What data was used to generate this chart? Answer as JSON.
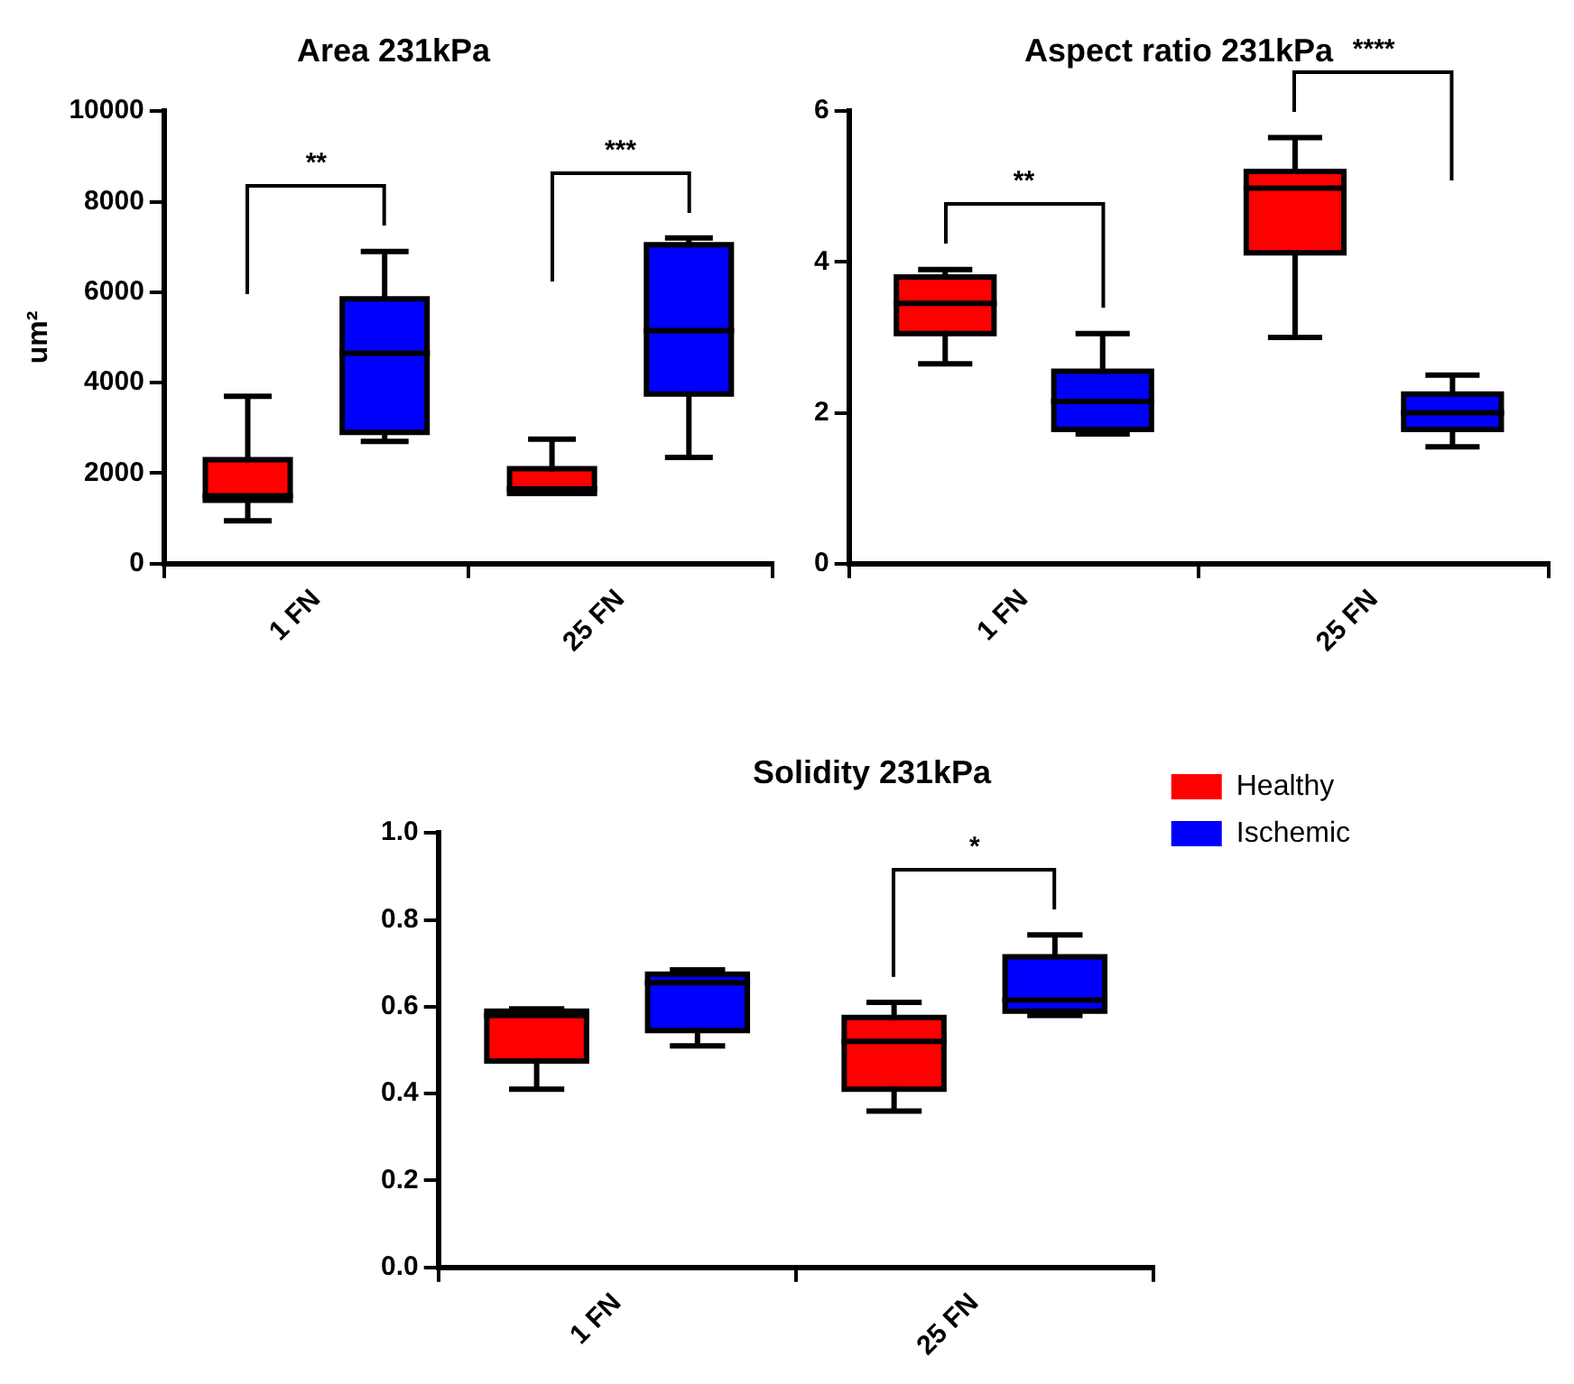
{
  "chart_data": [
    {
      "type": "box",
      "title": "Area 231kPa",
      "ylabel": "um²",
      "categories": [
        "1 FN",
        "25 FN"
      ],
      "ylim": [
        0,
        10000
      ],
      "yticks": [
        0,
        2000,
        4000,
        6000,
        8000,
        10000
      ],
      "grid": false,
      "legend": false,
      "series": [
        {
          "color": "#ff0000",
          "boxes": [
            {
              "low": 950,
              "q1": 1400,
              "median": 1500,
              "q3": 2300,
              "high": 3700
            },
            {
              "low": 1550,
              "q1": 1550,
              "median": 1650,
              "q3": 2100,
              "high": 2750
            }
          ]
        },
        {
          "color": "#0000ff",
          "boxes": [
            {
              "low": 2700,
              "q1": 2900,
              "median": 4650,
              "q3": 5850,
              "high": 6900
            },
            {
              "low": 2350,
              "q1": 3750,
              "median": 5150,
              "q3": 7050,
              "high": 7200
            }
          ]
        }
      ],
      "annotations": [
        "**",
        "***"
      ]
    },
    {
      "type": "box",
      "title": "Aspect ratio 231kPa",
      "categories": [
        "1 FN",
        "25 FN"
      ],
      "ylim": [
        0,
        6
      ],
      "yticks": [
        0,
        2,
        4,
        6
      ],
      "grid": false,
      "legend": false,
      "series": [
        {
          "color": "#ff0000",
          "boxes": [
            {
              "low": 2.65,
              "q1": 3.05,
              "median": 3.45,
              "q3": 3.8,
              "high": 3.9
            },
            {
              "low": 3.0,
              "q1": 4.12,
              "median": 4.98,
              "q3": 5.2,
              "high": 5.65
            }
          ]
        },
        {
          "color": "#0000ff",
          "boxes": [
            {
              "low": 1.72,
              "q1": 1.78,
              "median": 2.15,
              "q3": 2.55,
              "high": 3.05
            },
            {
              "low": 1.55,
              "q1": 1.78,
              "median": 2.0,
              "q3": 2.25,
              "high": 2.5
            }
          ]
        }
      ],
      "annotations": [
        "**",
        "****"
      ]
    },
    {
      "type": "box",
      "title": "Solidity 231kPa",
      "categories": [
        "1 FN",
        "25 FN"
      ],
      "ylim": [
        0,
        1
      ],
      "yticks": [
        {
          "value": 0,
          "label": "0.0"
        },
        0.2,
        0.4,
        0.6,
        0.8,
        {
          "value": 1,
          "label": "1.0"
        }
      ],
      "grid": false,
      "legend": "right",
      "series": [
        {
          "name": "Healthy",
          "color": "#ff0000",
          "boxes": [
            {
              "low": 0.41,
              "q1": 0.475,
              "median": 0.58,
              "q3": 0.59,
              "high": 0.595
            },
            {
              "low": 0.36,
              "q1": 0.41,
              "median": 0.52,
              "q3": 0.575,
              "high": 0.61
            }
          ]
        },
        {
          "name": "Ischemic",
          "color": "#0000ff",
          "boxes": [
            {
              "low": 0.51,
              "q1": 0.545,
              "median": 0.655,
              "q3": 0.675,
              "high": 0.685
            },
            {
              "low": 0.58,
              "q1": 0.59,
              "median": 0.615,
              "q3": 0.715,
              "high": 0.765
            }
          ]
        }
      ],
      "annotations": [
        "*"
      ]
    }
  ]
}
